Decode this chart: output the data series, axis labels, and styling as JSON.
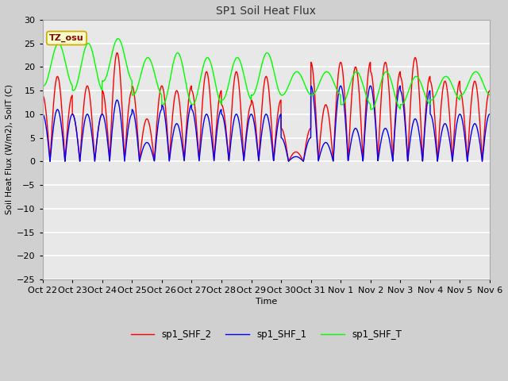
{
  "title": "SP1 Soil Heat Flux",
  "xlabel": "Time",
  "ylabel": "Soil Heat Flux (W/m2), SoilT (C)",
  "ylim": [
    -25,
    30
  ],
  "fig_bg_color": "#c8c8c8",
  "plot_bg_color": "#e8e8e8",
  "grid_color": "white",
  "tz_label": "TZ_osu",
  "legend_labels": [
    "sp1_SHF_2",
    "sp1_SHF_1",
    "sp1_SHF_T"
  ],
  "line_colors": [
    "red",
    "blue",
    "lime"
  ],
  "tick_labels": [
    "Oct 22",
    "Oct 23",
    "Oct 24",
    "Oct 25",
    "Oct 26",
    "Oct 27",
    "Oct 28",
    "Oct 29",
    "Oct 30",
    "Oct 31",
    "Nov 1",
    "Nov 2",
    "Nov 3",
    "Nov 4",
    "Nov 5",
    "Nov 6"
  ],
  "n_days": 15,
  "yticks": [
    -25,
    -20,
    -15,
    -10,
    -5,
    0,
    5,
    10,
    15,
    20,
    25,
    30
  ],
  "red_day_amps": [
    18,
    16,
    23,
    9,
    15,
    19,
    19,
    18,
    2,
    12,
    20,
    21,
    22,
    17,
    17
  ],
  "red_night_amps": [
    14,
    10,
    15,
    16,
    16,
    15,
    12,
    13,
    7,
    21,
    21,
    19,
    18,
    17,
    15
  ],
  "blue_day_amps": [
    11,
    10,
    13,
    4,
    8,
    10,
    10,
    10,
    1,
    4,
    7,
    7,
    9,
    8,
    8
  ],
  "blue_night_amps": [
    10,
    10,
    10,
    11,
    12,
    11,
    10,
    10,
    5,
    16,
    16,
    16,
    15,
    10,
    10
  ],
  "green_day": [
    25,
    25,
    26,
    22,
    23,
    22,
    22,
    23,
    19,
    19,
    19,
    19,
    18,
    18,
    19
  ],
  "green_night": [
    16,
    15,
    17,
    14,
    12,
    12,
    13,
    14,
    14,
    14,
    12,
    11,
    12,
    13,
    14
  ]
}
